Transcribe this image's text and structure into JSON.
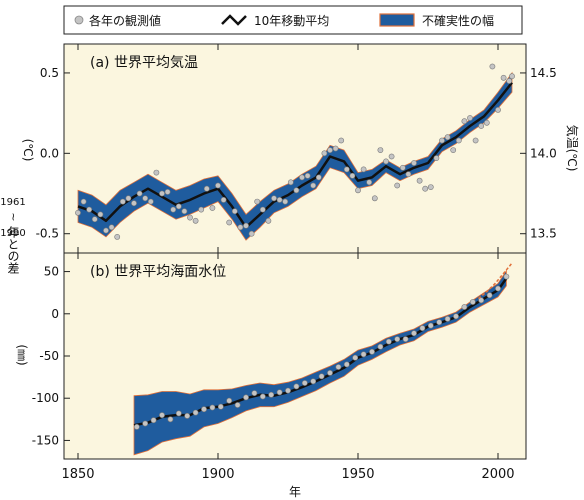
{
  "legend": {
    "observed": "各年の観測値",
    "moving_average": "10年移動平均",
    "uncertainty": "不確実性の幅"
  },
  "colors": {
    "background": "#fbf6df",
    "uncertainty_fill": "#1f5c9e",
    "uncertainty_edge": "#e0703a",
    "moving_average_line": "#111111",
    "observed_point": "#c4c4c4"
  },
  "shared": {
    "left_axis_label_top": "1961",
    "left_axis_label_mid": "~",
    "left_axis_label_bottom": "1990",
    "left_axis_label_rest": "年との差",
    "xlabel": "年"
  },
  "chart_data": [
    {
      "type": "line",
      "title": "(a) 世界平均気温",
      "ylabel_left": "(℃)",
      "ylabel_right": "気温(℃)",
      "xlim": [
        1845,
        2010
      ],
      "ylim": [
        -0.62,
        0.68
      ],
      "x_ticks": [
        "1850",
        "1900",
        "1950",
        "2000"
      ],
      "y_ticks": [
        "-0.5",
        "0.0",
        "0.5"
      ],
      "y2_ticks": [
        "13.5",
        "14.0",
        "14.5"
      ],
      "y2_offset": 14.0,
      "series": [
        {
          "role": "moving_average",
          "x": [
            1850,
            1855,
            1860,
            1865,
            1870,
            1875,
            1880,
            1885,
            1890,
            1895,
            1900,
            1905,
            1910,
            1915,
            1920,
            1925,
            1930,
            1935,
            1940,
            1945,
            1950,
            1955,
            1960,
            1965,
            1970,
            1975,
            1980,
            1985,
            1990,
            1995,
            2000,
            2005
          ],
          "y": [
            -0.33,
            -0.36,
            -0.42,
            -0.33,
            -0.27,
            -0.22,
            -0.27,
            -0.32,
            -0.29,
            -0.25,
            -0.22,
            -0.33,
            -0.46,
            -0.38,
            -0.3,
            -0.26,
            -0.2,
            -0.15,
            -0.02,
            -0.05,
            -0.17,
            -0.15,
            -0.08,
            -0.13,
            -0.09,
            -0.06,
            0.05,
            0.1,
            0.17,
            0.23,
            0.33,
            0.44
          ],
          "band_half_width": [
            0.1,
            0.1,
            0.1,
            0.1,
            0.09,
            0.09,
            0.09,
            0.09,
            0.09,
            0.09,
            0.08,
            0.08,
            0.08,
            0.08,
            0.07,
            0.07,
            0.07,
            0.07,
            0.07,
            0.07,
            0.05,
            0.05,
            0.04,
            0.04,
            0.04,
            0.04,
            0.04,
            0.04,
            0.04,
            0.04,
            0.05,
            0.06
          ]
        },
        {
          "role": "observed",
          "x": [
            1850,
            1852,
            1854,
            1856,
            1858,
            1860,
            1862,
            1864,
            1866,
            1868,
            1870,
            1872,
            1874,
            1876,
            1878,
            1880,
            1882,
            1884,
            1886,
            1888,
            1890,
            1892,
            1894,
            1896,
            1898,
            1900,
            1902,
            1904,
            1906,
            1908,
            1910,
            1912,
            1914,
            1916,
            1918,
            1920,
            1922,
            1924,
            1926,
            1928,
            1930,
            1932,
            1934,
            1936,
            1938,
            1940,
            1942,
            1944,
            1946,
            1948,
            1950,
            1952,
            1954,
            1956,
            1958,
            1960,
            1962,
            1964,
            1966,
            1968,
            1970,
            1972,
            1974,
            1976,
            1978,
            1980,
            1982,
            1984,
            1986,
            1988,
            1990,
            1992,
            1994,
            1996,
            1998,
            2000,
            2002,
            2004,
            2005
          ],
          "y": [
            -0.37,
            -0.3,
            -0.35,
            -0.41,
            -0.38,
            -0.48,
            -0.46,
            -0.52,
            -0.3,
            -0.28,
            -0.31,
            -0.25,
            -0.28,
            -0.3,
            -0.12,
            -0.25,
            -0.24,
            -0.35,
            -0.33,
            -0.36,
            -0.4,
            -0.42,
            -0.35,
            -0.22,
            -0.34,
            -0.2,
            -0.29,
            -0.43,
            -0.36,
            -0.46,
            -0.45,
            -0.5,
            -0.3,
            -0.35,
            -0.42,
            -0.28,
            -0.29,
            -0.3,
            -0.18,
            -0.23,
            -0.15,
            -0.14,
            -0.2,
            -0.15,
            0.0,
            0.02,
            0.03,
            0.08,
            -0.1,
            -0.14,
            -0.23,
            -0.1,
            -0.18,
            -0.28,
            0.02,
            -0.05,
            -0.02,
            -0.2,
            -0.09,
            -0.13,
            -0.06,
            -0.17,
            -0.22,
            -0.21,
            -0.03,
            0.08,
            0.1,
            0.02,
            0.08,
            0.2,
            0.22,
            0.08,
            0.17,
            0.19,
            0.54,
            0.27,
            0.47,
            0.45,
            0.48
          ]
        }
      ]
    },
    {
      "type": "line",
      "title": "(b) 世界平均海面水位",
      "ylabel_left": "(㎜)",
      "xlim": [
        1845,
        2010
      ],
      "ylim": [
        -172,
        72
      ],
      "x_ticks": [
        "1850",
        "1900",
        "1950",
        "2000"
      ],
      "y_ticks": [
        "50",
        "0",
        "-50",
        "-100",
        "-150"
      ],
      "series": [
        {
          "role": "moving_average",
          "x": [
            1870,
            1875,
            1880,
            1885,
            1890,
            1895,
            1900,
            1905,
            1910,
            1915,
            1920,
            1925,
            1930,
            1935,
            1940,
            1945,
            1950,
            1955,
            1960,
            1965,
            1970,
            1975,
            1980,
            1985,
            1990,
            1995,
            2000,
            2003
          ],
          "y": [
            -132,
            -129,
            -122,
            -120,
            -120,
            -112,
            -110,
            -106,
            -100,
            -96,
            -97,
            -93,
            -87,
            -80,
            -72,
            -64,
            -52,
            -46,
            -37,
            -30,
            -25,
            -15,
            -10,
            -4,
            8,
            18,
            28,
            42
          ],
          "band_half_width": [
            35,
            33,
            30,
            28,
            25,
            22,
            20,
            17,
            15,
            14,
            13,
            12,
            11,
            11,
            10,
            10,
            9,
            8,
            8,
            7,
            7,
            6,
            6,
            6,
            6,
            7,
            8,
            9
          ]
        },
        {
          "role": "observed",
          "x": [
            1871,
            1874,
            1877,
            1880,
            1883,
            1886,
            1889,
            1892,
            1895,
            1898,
            1901,
            1904,
            1907,
            1910,
            1913,
            1916,
            1919,
            1922,
            1925,
            1928,
            1931,
            1934,
            1937,
            1940,
            1943,
            1946,
            1949,
            1952,
            1955,
            1958,
            1961,
            1964,
            1967,
            1970,
            1973,
            1976,
            1979,
            1982,
            1985,
            1988,
            1991,
            1994,
            1997,
            2000,
            2003
          ],
          "y": [
            -134,
            -130,
            -126,
            -120,
            -125,
            -118,
            -121,
            -117,
            -113,
            -111,
            -110,
            -103,
            -108,
            -99,
            -94,
            -98,
            -96,
            -93,
            -91,
            -86,
            -82,
            -80,
            -74,
            -70,
            -63,
            -60,
            -52,
            -48,
            -45,
            -39,
            -33,
            -30,
            -30,
            -23,
            -17,
            -14,
            -10,
            -6,
            -3,
            8,
            14,
            16,
            22,
            30,
            44
          ]
        },
        {
          "role": "satellite",
          "x": [
            1993,
            1996,
            1999,
            2002,
            2005
          ],
          "y": [
            18,
            26,
            36,
            48,
            60
          ]
        }
      ]
    }
  ]
}
